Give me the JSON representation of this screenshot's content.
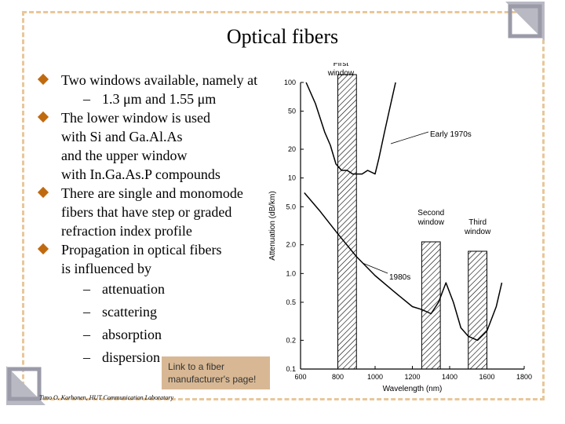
{
  "slide": {
    "title": "Optical fibers",
    "bullets": [
      {
        "lines": [
          "Two windows available, namely at"
        ],
        "sub": [
          "1.3 μm and 1.55 μm"
        ]
      },
      {
        "lines": [
          "The lower window is used",
          "with Si and Ga.Al.As",
          "and the upper window",
          "with In.Ga.As.P compounds"
        ]
      },
      {
        "lines": [
          "There are single and monomode",
          "fibers that have step or graded",
          "refraction index profile"
        ]
      },
      {
        "lines": [
          "Propagation in optical fibers",
          "is influenced by"
        ],
        "sub": [
          "attenuation",
          "scattering",
          "absorption",
          "dispersion"
        ]
      }
    ],
    "link_text": "Link to a fiber manufacturer's page!",
    "footer": "Timo O. Korhonen, HUT Communication Laboratory",
    "accent_color": "#c06a10",
    "frame_color": "#e8c79a"
  },
  "chart_data": {
    "type": "line",
    "xlabel": "Wavelength (nm)",
    "ylabel": "Attenuation (dB/km)",
    "x_ticks": [
      600,
      800,
      1000,
      1200,
      1400,
      1600,
      1800
    ],
    "y_ticks": [
      100,
      50,
      20,
      10,
      5.0,
      2.0,
      1.0,
      0.5,
      0.2,
      0.1
    ],
    "y_tick_labels": [
      "100",
      "50",
      "20",
      "10",
      "5.0",
      "2.0",
      "1.0",
      "0.5",
      "0.2",
      "0.1"
    ],
    "xlim": [
      600,
      1800
    ],
    "ylim": [
      0.1,
      100
    ],
    "y_scale": "log",
    "windows": [
      {
        "label": [
          "First",
          "window"
        ],
        "x_start": 800,
        "x_end": 900
      },
      {
        "label": [
          "Second",
          "window"
        ],
        "x_start": 1250,
        "x_end": 1350
      },
      {
        "label": [
          "Third",
          "window"
        ],
        "x_start": 1500,
        "x_end": 1600
      }
    ],
    "series": [
      {
        "name": "Early 1970s",
        "x": [
          630,
          680,
          730,
          760,
          790,
          820,
          850,
          880,
          910,
          930,
          960,
          1000,
          1020,
          1050,
          1080,
          1110
        ],
        "y": [
          100,
          60,
          30,
          22,
          14,
          12,
          12,
          11,
          11,
          11,
          12,
          11,
          16,
          30,
          55,
          100
        ]
      },
      {
        "name": "1980s",
        "x": [
          620,
          700,
          800,
          900,
          1000,
          1100,
          1200,
          1250,
          1300,
          1340,
          1380,
          1420,
          1460,
          1500,
          1550,
          1600,
          1650,
          1680
        ],
        "y": [
          7.0,
          4.6,
          2.6,
          1.5,
          0.95,
          0.65,
          0.45,
          0.42,
          0.38,
          0.5,
          0.8,
          0.5,
          0.27,
          0.22,
          0.2,
          0.25,
          0.45,
          0.8
        ]
      }
    ]
  }
}
